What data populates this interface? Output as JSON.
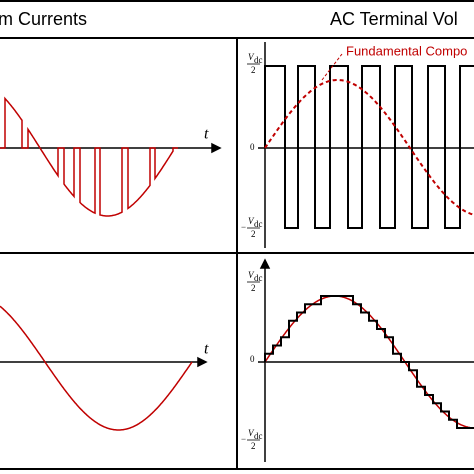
{
  "header": {
    "left_title": "m Currents",
    "right_title": "AC Terminal Vol"
  },
  "current_panels": {
    "axis_label": "t"
  },
  "voltage_panels": {
    "legend": "Fundamental Compo",
    "symbol": "V",
    "subscript": "dc",
    "denominator": "2",
    "minus": "−",
    "zero": "0"
  }
}
